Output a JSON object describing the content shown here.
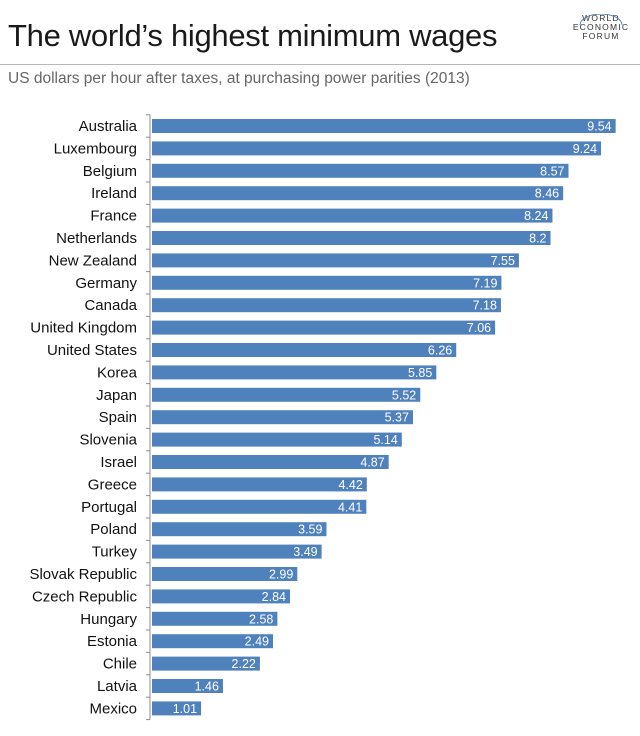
{
  "header": {
    "title": "The world’s highest minimum wages",
    "subtitle": "US dollars per hour after taxes, at purchasing power parities (2013)"
  },
  "logo": {
    "lines": [
      "WORLD",
      "ECONOMIC",
      "FORUM"
    ],
    "color": "#333333"
  },
  "colors": {
    "bar": "#4f81bd",
    "axis": "#8c8c8c",
    "label": "#111111"
  },
  "chart_data": {
    "type": "bar",
    "orientation": "horizontal",
    "title": "The world’s highest minimum wages",
    "subtitle": "US dollars per hour after taxes, at purchasing power parities (2013)",
    "xlabel": "",
    "ylabel": "",
    "xlim": [
      0,
      10
    ],
    "grid": false,
    "legend": "none",
    "categories": [
      "Australia",
      "Luxembourg",
      "Belgium",
      "Ireland",
      "France",
      "Netherlands",
      "New Zealand",
      "Germany",
      "Canada",
      "United Kingdom",
      "United States",
      "Korea",
      "Japan",
      "Spain",
      "Slovenia",
      "Israel",
      "Greece",
      "Portugal",
      "Poland",
      "Turkey",
      "Slovak Republic",
      "Czech Republic",
      "Hungary",
      "Estonia",
      "Chile",
      "Latvia",
      "Mexico"
    ],
    "values": [
      9.54,
      9.24,
      8.57,
      8.46,
      8.24,
      8.2,
      7.55,
      7.19,
      7.18,
      7.06,
      6.26,
      5.85,
      5.52,
      5.37,
      5.14,
      4.87,
      4.42,
      4.41,
      3.59,
      3.49,
      2.99,
      2.84,
      2.58,
      2.49,
      2.22,
      1.46,
      1.01
    ],
    "value_labels": [
      "9.54",
      "9.24",
      "8.57",
      "8.46",
      "8.24",
      "8.2",
      "7.55",
      "7.19",
      "7.18",
      "7.06",
      "6.26",
      "5.85",
      "5.52",
      "5.37",
      "5.14",
      "4.87",
      "4.42",
      "4.41",
      "3.59",
      "3.49",
      "2.99",
      "2.84",
      "2.58",
      "2.49",
      "2.22",
      "1.46",
      "1.01"
    ]
  }
}
